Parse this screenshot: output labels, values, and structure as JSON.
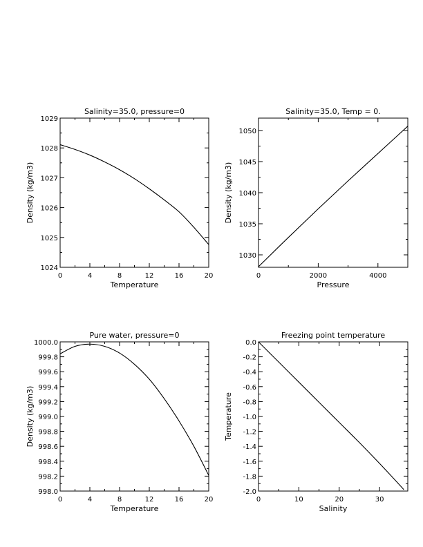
{
  "chart_data": [
    {
      "type": "line",
      "title": "Salinity=35.0, pressure=0",
      "xlabel": "Temperature",
      "ylabel": "Density (kg/m3)",
      "xlim": [
        0,
        20
      ],
      "ylim": [
        1024,
        1029
      ],
      "xticks": [
        0,
        4,
        8,
        12,
        16,
        20
      ],
      "xtick_labels": [
        "0",
        "4",
        "8",
        "12",
        "16",
        "20"
      ],
      "yticks": [
        1024,
        1025,
        1026,
        1027,
        1028,
        1029
      ],
      "ytick_labels": [
        "1024",
        "1025",
        "1026",
        "1027",
        "1028",
        "1029"
      ],
      "x": [
        0,
        2,
        4,
        6,
        8,
        10,
        12,
        14,
        16,
        18,
        20
      ],
      "y": [
        1028.11,
        1027.95,
        1027.76,
        1027.53,
        1027.27,
        1026.97,
        1026.63,
        1026.26,
        1025.86,
        1025.34,
        1024.76
      ],
      "grid": false
    },
    {
      "type": "line",
      "title": "Salinity=35.0, Temp = 0.",
      "xlabel": "Pressure",
      "ylabel": "Density (kg/m3)",
      "xlim": [
        0,
        5000
      ],
      "ylim": [
        1028,
        1052
      ],
      "xticks": [
        0,
        2000,
        4000
      ],
      "xtick_labels": [
        "0",
        "2000",
        "4000"
      ],
      "yticks": [
        1030,
        1035,
        1040,
        1045,
        1050
      ],
      "ytick_labels": [
        "1030",
        "1035",
        "1040",
        "1045",
        "1050"
      ],
      "x": [
        0,
        1000,
        2000,
        3000,
        4000,
        5000
      ],
      "y": [
        1028.1,
        1032.8,
        1037.4,
        1041.9,
        1046.3,
        1050.7
      ],
      "grid": false
    },
    {
      "type": "line",
      "title": "Pure water, pressure=0",
      "xlabel": "Temperature",
      "ylabel": "Density (kg/m3)",
      "xlim": [
        0,
        20
      ],
      "ylim": [
        998.0,
        1000.0
      ],
      "xticks": [
        0,
        4,
        8,
        12,
        16,
        20
      ],
      "xtick_labels": [
        "0",
        "4",
        "8",
        "12",
        "16",
        "20"
      ],
      "yticks": [
        998.0,
        998.2,
        998.4,
        998.6,
        998.8,
        999.0,
        999.2,
        999.4,
        999.6,
        999.8,
        1000.0
      ],
      "ytick_labels": [
        "998.0",
        "998.2",
        "998.4",
        "998.6",
        "998.8",
        "999.0",
        "999.2",
        "999.4",
        "999.6",
        "999.8",
        "1000.0"
      ],
      "x": [
        0,
        2,
        4,
        6,
        8,
        10,
        12,
        14,
        16,
        18,
        20
      ],
      "y": [
        999.84,
        999.94,
        999.97,
        999.94,
        999.85,
        999.7,
        999.5,
        999.24,
        998.94,
        998.6,
        998.21
      ],
      "grid": false
    },
    {
      "type": "line",
      "title": "Freezing point temperature",
      "xlabel": "Salinity",
      "ylabel": "Temperature",
      "xlim": [
        0,
        37
      ],
      "ylim": [
        -2.0,
        0.0
      ],
      "xticks": [
        0,
        10,
        20,
        30
      ],
      "xtick_labels": [
        "0",
        "10",
        "20",
        "30"
      ],
      "yticks": [
        -2.0,
        -1.8,
        -1.6,
        -1.4,
        -1.2,
        -1.0,
        -0.8,
        -0.6,
        -0.4,
        -0.2,
        0.0
      ],
      "ytick_labels": [
        "-2.0",
        "-1.8",
        "-1.6",
        "-1.4",
        "-1.2",
        "-1.0",
        "-0.8",
        "-0.6",
        "-0.4",
        "-0.2",
        "0.0"
      ],
      "x": [
        0,
        5,
        10,
        15,
        20,
        25,
        30,
        35,
        36
      ],
      "y": [
        0.0,
        -0.27,
        -0.54,
        -0.81,
        -1.08,
        -1.35,
        -1.63,
        -1.92,
        -1.98
      ],
      "grid": false
    }
  ]
}
